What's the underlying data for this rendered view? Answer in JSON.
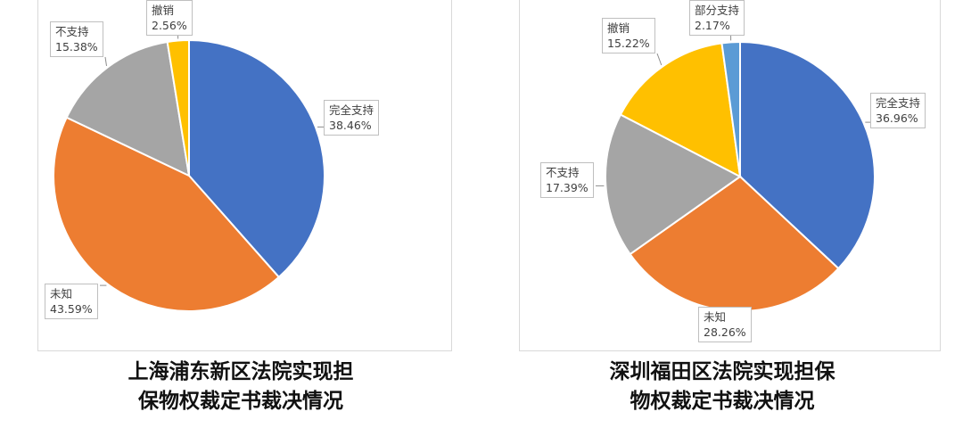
{
  "chart_data": [
    {
      "type": "pie",
      "title": "上海浦东新区法院实现担保物权裁定书裁决情况",
      "title_lines": [
        "上海浦东新区法院实现担",
        "保物权裁定书裁决情况"
      ],
      "slices": [
        {
          "name": "完全支持",
          "value": 38.46,
          "label": "38.46%",
          "color": "#4472C4"
        },
        {
          "name": "未知",
          "value": 43.59,
          "label": "43.59%",
          "color": "#ED7D31"
        },
        {
          "name": "不支持",
          "value": 15.38,
          "label": "15.38%",
          "color": "#A5A5A5"
        },
        {
          "name": "撤销",
          "value": 2.56,
          "label": "2.56%",
          "color": "#FFC000"
        }
      ]
    },
    {
      "type": "pie",
      "title": "深圳福田区法院实现担保物权裁定书裁决情况",
      "title_lines": [
        "深圳福田区法院实现担保",
        "物权裁定书裁决情况"
      ],
      "slices": [
        {
          "name": "完全支持",
          "value": 36.96,
          "label": "36.96%",
          "color": "#4472C4"
        },
        {
          "name": "未知",
          "value": 28.26,
          "label": "28.26%",
          "color": "#ED7D31"
        },
        {
          "name": "不支持",
          "value": 17.39,
          "label": "17.39%",
          "color": "#A5A5A5"
        },
        {
          "name": "撤销",
          "value": 15.22,
          "label": "15.22%",
          "color": "#FFC000"
        },
        {
          "name": "部分支持",
          "value": 2.17,
          "label": "2.17%",
          "color": "#5B9BD5"
        }
      ]
    }
  ]
}
